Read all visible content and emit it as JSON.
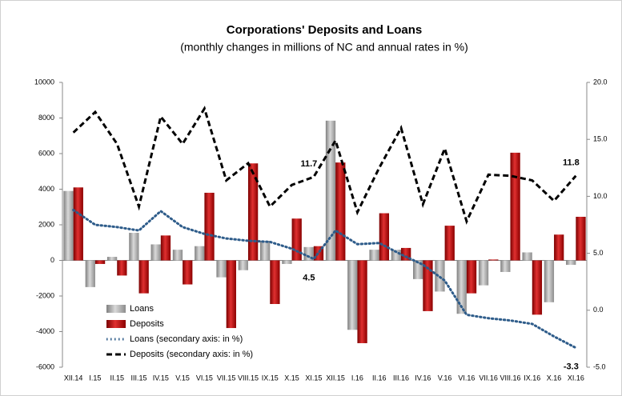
{
  "chart_data": {
    "type": "bar-line",
    "title": "Corporations' Deposits and Loans",
    "subtitle": "(monthly changes in millions of NC and annual rates in %)",
    "categories": [
      "XII.14",
      "I.15",
      "II.15",
      "III.15",
      "IV.15",
      "V.15",
      "VI.15",
      "VII.15",
      "VIII.15",
      "IX.15",
      "X.15",
      "XI.15",
      "XII.15",
      "I.16",
      "II.16",
      "III.16",
      "IV.16",
      "V.16",
      "VI.16",
      "VII.16",
      "VIII.16",
      "IX.16",
      "X.16",
      "XI.16"
    ],
    "ylim": [
      -6000,
      10000
    ],
    "yticks": [
      -6000,
      -4000,
      -2000,
      0,
      2000,
      4000,
      6000,
      8000,
      10000
    ],
    "y2lim": [
      -5,
      20
    ],
    "y2ticks": [
      {
        "value": -5,
        "label": "-5.0"
      },
      {
        "value": 0,
        "label": "0.0"
      },
      {
        "value": 5,
        "label": "5.0"
      },
      {
        "value": 10,
        "label": "10.0"
      },
      {
        "value": 15,
        "label": "15.0"
      },
      {
        "value": 20,
        "label": "20.0"
      }
    ],
    "series": [
      {
        "name": "Loans",
        "kind": "bar",
        "color": "#a6a6a6",
        "values": [
          3900,
          -1500,
          200,
          1550,
          900,
          600,
          800,
          -950,
          -550,
          1100,
          -200,
          750,
          7850,
          -3900,
          600,
          600,
          -1050,
          -1750,
          -3000,
          -1400,
          -650,
          450,
          -2350,
          -250
        ]
      },
      {
        "name": "Deposits",
        "kind": "bar",
        "color": "#c00000",
        "values": [
          4100,
          -200,
          -850,
          -1850,
          1400,
          -1350,
          3800,
          -3800,
          5450,
          -2450,
          2350,
          800,
          5500,
          -4650,
          2650,
          700,
          -2850,
          1950,
          -1850,
          50,
          6050,
          -3050,
          1450,
          2450
        ]
      },
      {
        "name": "Loans (secondary axis: in %)",
        "kind": "line",
        "dash": "dot",
        "color": "#2e5c8a",
        "axis": "y2",
        "values": [
          8.8,
          7.5,
          7.3,
          7.0,
          8.7,
          7.3,
          6.7,
          6.3,
          6.1,
          6.0,
          5.4,
          4.5,
          7.0,
          5.8,
          5.9,
          4.9,
          4.0,
          2.6,
          -0.4,
          -0.7,
          -0.9,
          -1.2,
          -2.3,
          -3.3
        ],
        "value_labels": [
          null,
          null,
          null,
          null,
          null,
          null,
          null,
          null,
          null,
          null,
          null,
          "4.5",
          null,
          null,
          null,
          null,
          null,
          null,
          null,
          null,
          null,
          null,
          null,
          "-3.3"
        ]
      },
      {
        "name": "Deposits (secondary axis: in %)",
        "kind": "line",
        "dash": "dash",
        "color": "#000000",
        "axis": "y2",
        "values": [
          15.6,
          17.4,
          14.6,
          9.1,
          17.0,
          14.6,
          17.7,
          11.4,
          12.9,
          9.1,
          11.0,
          11.7,
          14.9,
          8.6,
          12.5,
          16.0,
          9.3,
          14.2,
          7.8,
          11.9,
          11.8,
          11.4,
          9.6,
          11.8
        ],
        "value_labels": [
          null,
          null,
          null,
          null,
          null,
          null,
          null,
          null,
          null,
          null,
          null,
          "11.7",
          null,
          null,
          null,
          null,
          null,
          null,
          null,
          null,
          null,
          null,
          null,
          "11.8"
        ]
      }
    ]
  }
}
